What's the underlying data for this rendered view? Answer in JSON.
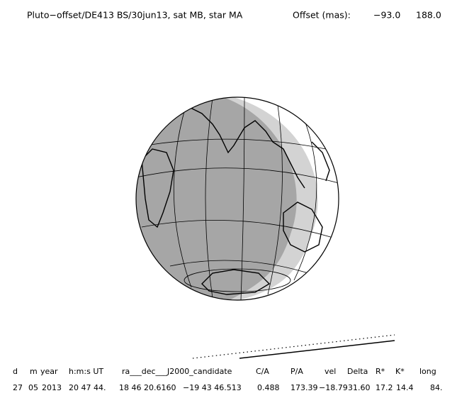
{
  "header": {
    "title": "Pluto−offset/DE413 BS/30jun13, sat MB, star MA",
    "offset_label": "Offset (mas):",
    "offset_ra": "−93.0",
    "offset_dec": "188.0"
  },
  "table": {
    "columns": [
      "d",
      "m",
      "year",
      "h:m:s UT",
      "ra___dec___J2000_candidate",
      "C/A",
      "P/A",
      "vel",
      "Delta",
      "R*",
      "K*",
      "long"
    ],
    "rows": [
      [
        "27",
        "05",
        "2013",
        "20 47 44.",
        "18 46 20.6160",
        "−19 43  46.513",
        "0.488",
        "173.39",
        "−18.79",
        "31.60",
        "17.2",
        "14.4",
        "84."
      ]
    ]
  }
}
